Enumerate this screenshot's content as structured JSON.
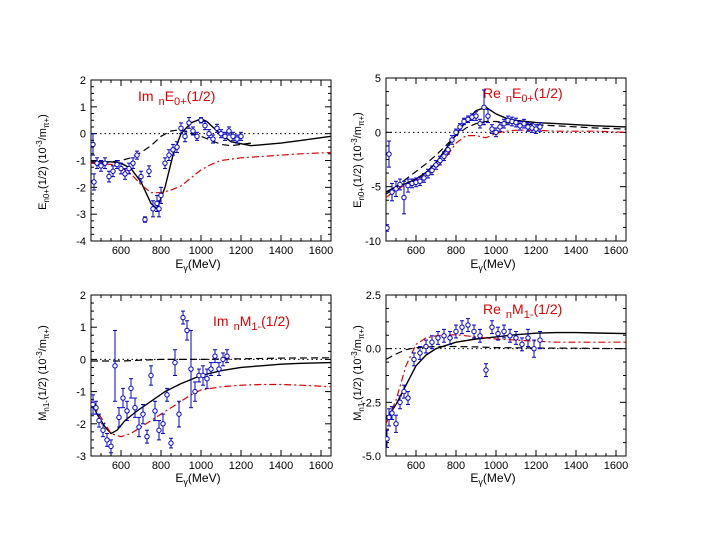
{
  "colors": {
    "axis": "#000000",
    "model": "#000000",
    "alt": "#000000",
    "red": "#dd0000",
    "points": "#0000cc",
    "reference": "#000000"
  },
  "chart_data": [
    {
      "type": "scatter",
      "title": "Im nE0+(1/2)",
      "xlabel": "Eγ(MeV)",
      "ylabel": "En0+(1/2) (10^-3/mπ+)",
      "xlim": [
        450,
        1650
      ],
      "ylim": [
        -4,
        2
      ],
      "xticks": [
        "600",
        "800",
        "1000",
        "1200",
        "1400",
        "1600"
      ],
      "yticks": [
        "-4",
        "-3",
        "-2",
        "-1",
        "0",
        "1",
        "2"
      ],
      "series": [
        {
          "style": "solid",
          "x": [
            450,
            500,
            550,
            600,
            650,
            700,
            750,
            780,
            820,
            860,
            900,
            950,
            1000,
            1030,
            1080,
            1150,
            1250,
            1400,
            1500,
            1650
          ],
          "y": [
            -1.05,
            -1.05,
            -1.05,
            -1.1,
            -1.3,
            -1.8,
            -2.6,
            -2.8,
            -2.0,
            -0.8,
            0.0,
            0.4,
            0.55,
            0.45,
            0.1,
            -0.3,
            -0.45,
            -0.35,
            -0.25,
            -0.1
          ]
        },
        {
          "style": "dashed",
          "x": [
            450,
            500,
            550,
            600,
            650,
            700,
            750,
            800,
            850,
            900,
            950,
            1000,
            1050,
            1100,
            1150,
            1200,
            1250
          ],
          "y": [
            -1.1,
            -1.1,
            -1.05,
            -1.0,
            -0.9,
            -0.7,
            -0.45,
            -0.1,
            0.1,
            0.15,
            0.0,
            -0.1,
            -0.25,
            -0.4,
            -0.45,
            -0.4,
            -0.35
          ]
        },
        {
          "style": "dashdot",
          "x": [
            450,
            500,
            550,
            600,
            650,
            700,
            750,
            800,
            850,
            900,
            950,
            1000,
            1050,
            1100,
            1200,
            1300,
            1400,
            1500,
            1650
          ],
          "y": [
            -1.1,
            -1.1,
            -1.15,
            -1.25,
            -1.5,
            -1.9,
            -2.2,
            -2.2,
            -2.1,
            -1.95,
            -1.65,
            -1.35,
            -1.15,
            -1.0,
            -0.9,
            -0.85,
            -0.8,
            -0.75,
            -0.7
          ]
        }
      ],
      "points": {
        "x": [
          460,
          465,
          480,
          500,
          520,
          540,
          560,
          580,
          600,
          620,
          640,
          660,
          680,
          700,
          720,
          740,
          760,
          780,
          790,
          800,
          820,
          840,
          860,
          880,
          900,
          920,
          940,
          960,
          980,
          1000,
          1020,
          1040,
          1060,
          1080,
          1100,
          1120,
          1140,
          1160,
          1180,
          1200
        ],
        "y": [
          -0.4,
          -1.8,
          -1.1,
          -1.2,
          -1.1,
          -1.6,
          -1.4,
          -1.15,
          -1.3,
          -1.5,
          -1.3,
          -1.1,
          -0.8,
          -1.6,
          -3.2,
          -1.4,
          -2.8,
          -2.6,
          -2.8,
          -2.3,
          -1.1,
          -0.8,
          -0.6,
          -0.5,
          0.2,
          -0.1,
          0.4,
          0.1,
          -0.1,
          0.5,
          0.3,
          0.0,
          -0.2,
          0.2,
          0.0,
          -0.1,
          0.1,
          -0.1,
          -0.2,
          -0.1
        ],
        "err": [
          0.4,
          0.3,
          0.2,
          0.2,
          0.2,
          0.2,
          0.2,
          0.15,
          0.2,
          0.2,
          0.2,
          0.2,
          0.15,
          0.2,
          0.1,
          0.2,
          0.3,
          0.3,
          0.3,
          0.3,
          0.2,
          0.2,
          0.2,
          0.2,
          0.2,
          0.2,
          0.2,
          0.15,
          0.15,
          0.1,
          0.15,
          0.15,
          0.15,
          0.15,
          0.15,
          0.15,
          0.15,
          0.15,
          0.15,
          0.15
        ]
      }
    },
    {
      "type": "scatter",
      "title": "Re nE0+(1/2)",
      "xlabel": "Eγ(MeV)",
      "ylabel": "En0+(1/2) (10^-3/mπ+)",
      "xlim": [
        450,
        1650
      ],
      "ylim": [
        -10,
        5
      ],
      "xticks": [
        "600",
        "800",
        "1000",
        "1200",
        "1400",
        "1600"
      ],
      "yticks": [
        "-10",
        "-5",
        "0",
        "5"
      ],
      "series": [
        {
          "style": "solid",
          "x": [
            450,
            500,
            550,
            600,
            650,
            700,
            750,
            800,
            850,
            900,
            950,
            1000,
            1050,
            1100,
            1150,
            1200,
            1300,
            1400,
            1500,
            1650
          ],
          "y": [
            -5.5,
            -5.0,
            -4.7,
            -4.3,
            -3.7,
            -2.8,
            -1.5,
            -0.2,
            1.0,
            2.0,
            2.3,
            1.7,
            1.3,
            1.1,
            1.0,
            0.9,
            0.8,
            0.7,
            0.6,
            0.5
          ]
        },
        {
          "style": "dashed",
          "x": [
            450,
            500,
            550,
            600,
            650,
            700,
            750,
            800,
            850,
            900,
            950,
            1000,
            1050,
            1100,
            1200,
            1300,
            1400,
            1500,
            1650
          ],
          "y": [
            -5.7,
            -5.0,
            -4.3,
            -3.6,
            -2.9,
            -2.1,
            -1.2,
            -0.3,
            0.4,
            0.8,
            1.0,
            1.0,
            0.9,
            0.8,
            0.7,
            0.6,
            0.5,
            0.4,
            0.3
          ]
        },
        {
          "style": "dashdot",
          "x": [
            450,
            500,
            550,
            600,
            650,
            700,
            750,
            800,
            850,
            900,
            950,
            1000,
            1050,
            1100,
            1200,
            1300,
            1400,
            1500,
            1650
          ],
          "y": [
            -6.0,
            -5.3,
            -4.8,
            -4.4,
            -4.0,
            -3.3,
            -2.3,
            -1.0,
            -0.3,
            -0.3,
            -0.5,
            -0.1,
            0.1,
            0.2,
            0.2,
            0.1,
            0.1,
            0.1,
            0.0
          ]
        }
      ],
      "points": {
        "x": [
          455,
          465,
          480,
          500,
          520,
          540,
          560,
          580,
          600,
          620,
          640,
          660,
          680,
          700,
          720,
          740,
          760,
          780,
          800,
          820,
          840,
          860,
          880,
          900,
          920,
          940,
          960,
          980,
          1000,
          1020,
          1040,
          1060,
          1080,
          1100,
          1120,
          1140,
          1160,
          1180,
          1200,
          1220
        ],
        "y": [
          -8.8,
          -2.0,
          -5.5,
          -5.2,
          -4.8,
          -6.0,
          -4.9,
          -4.7,
          -4.6,
          -4.5,
          -4.2,
          -3.8,
          -3.5,
          -3.0,
          -2.6,
          -2.2,
          -1.6,
          -0.7,
          0.0,
          0.5,
          1.0,
          1.2,
          1.4,
          1.5,
          0.8,
          2.3,
          1.5,
          0.3,
          0.0,
          0.5,
          0.8,
          1.1,
          1.0,
          0.9,
          0.6,
          0.8,
          0.5,
          0.4,
          0.3,
          0.5
        ],
        "err": [
          0.3,
          1.2,
          0.8,
          0.7,
          0.5,
          1.5,
          0.6,
          0.4,
          0.4,
          0.4,
          0.4,
          0.4,
          0.4,
          0.4,
          0.4,
          0.4,
          0.4,
          0.4,
          0.3,
          0.3,
          0.3,
          0.3,
          0.3,
          0.4,
          0.4,
          1.6,
          0.6,
          0.4,
          0.4,
          0.4,
          0.4,
          0.4,
          0.4,
          0.4,
          0.4,
          0.4,
          0.4,
          0.4,
          0.4,
          0.4
        ]
      }
    },
    {
      "type": "scatter",
      "title": "Im nM1-(1/2)",
      "xlabel": "Eγ(MeV)",
      "ylabel": "Mn1-(1/2) (10^-3/mπ+)",
      "xlim": [
        450,
        1650
      ],
      "ylim": [
        -3,
        2
      ],
      "xticks": [
        "600",
        "800",
        "1000",
        "1200",
        "1400",
        "1600"
      ],
      "yticks": [
        "-3",
        "-2",
        "-1",
        "0",
        "1",
        "2"
      ],
      "series": [
        {
          "style": "solid",
          "x": [
            450,
            480,
            520,
            550,
            580,
            620,
            680,
            750,
            820,
            900,
            1000,
            1100,
            1200,
            1300,
            1400,
            1500,
            1650
          ],
          "y": [
            -1.3,
            -1.7,
            -2.1,
            -2.3,
            -2.2,
            -1.9,
            -1.6,
            -1.3,
            -1.0,
            -0.75,
            -0.5,
            -0.35,
            -0.25,
            -0.2,
            -0.15,
            -0.12,
            -0.1
          ]
        },
        {
          "style": "dashed",
          "x": [
            450,
            600,
            800,
            1000,
            1200,
            1400,
            1650
          ],
          "y": [
            -0.05,
            -0.05,
            0.0,
            0.0,
            0.02,
            0.04,
            0.05
          ]
        },
        {
          "style": "dashdot",
          "x": [
            450,
            500,
            550,
            600,
            650,
            700,
            750,
            800,
            850,
            900,
            950,
            1000,
            1100,
            1200,
            1300,
            1400,
            1500,
            1650
          ],
          "y": [
            -1.3,
            -1.8,
            -2.3,
            -2.4,
            -2.3,
            -2.1,
            -1.9,
            -1.7,
            -1.5,
            -1.3,
            -1.1,
            -0.95,
            -0.85,
            -0.8,
            -0.78,
            -0.78,
            -0.8,
            -0.85
          ]
        }
      ],
      "points": {
        "x": [
          460,
          475,
          490,
          510,
          530,
          550,
          570,
          590,
          610,
          630,
          650,
          670,
          690,
          710,
          730,
          750,
          770,
          790,
          810,
          830,
          850,
          870,
          890,
          910,
          930,
          950,
          970,
          990,
          1010,
          1030,
          1050,
          1070,
          1090,
          1110,
          1130
        ],
        "y": [
          -1.4,
          -1.5,
          -1.9,
          -2.2,
          -2.5,
          -2.7,
          -0.2,
          -1.8,
          -1.2,
          -1.6,
          -0.9,
          -1.5,
          -2.1,
          -1.7,
          -2.4,
          -0.5,
          -1.6,
          -2.2,
          -2.0,
          -1.1,
          -2.6,
          -0.1,
          -1.7,
          1.3,
          0.9,
          -0.3,
          -1.0,
          -0.5,
          -0.5,
          -0.6,
          -0.3,
          0.1,
          -0.3,
          0.0,
          0.1
        ],
        "err": [
          0.3,
          0.2,
          0.2,
          0.2,
          0.2,
          0.2,
          1.1,
          0.3,
          0.3,
          0.3,
          0.3,
          0.3,
          0.3,
          0.3,
          0.2,
          0.3,
          0.3,
          0.3,
          0.3,
          0.2,
          0.15,
          0.4,
          0.4,
          0.2,
          0.3,
          1.2,
          0.3,
          0.2,
          0.3,
          0.3,
          0.2,
          0.2,
          0.2,
          0.2,
          0.2
        ]
      }
    },
    {
      "type": "scatter",
      "title": "Re nM1-(1/2)",
      "xlabel": "Eγ(MeV)",
      "ylabel": "Mn1-(1/2) (10^-3/mπ+)",
      "xlim": [
        450,
        1650
      ],
      "ylim": [
        -5,
        2.5
      ],
      "xticks": [
        "600",
        "800",
        "1000",
        "1200",
        "1400",
        "1600"
      ],
      "yticks": [
        "-5.0",
        "-2.5",
        "0.0",
        "2.5"
      ],
      "series": [
        {
          "style": "solid",
          "x": [
            450,
            500,
            550,
            600,
            650,
            700,
            800,
            900,
            1000,
            1100,
            1200,
            1300,
            1400,
            1500,
            1650
          ],
          "y": [
            -3.3,
            -2.6,
            -1.7,
            -0.8,
            -0.3,
            0.0,
            0.3,
            0.45,
            0.55,
            0.65,
            0.72,
            0.75,
            0.75,
            0.73,
            0.7
          ]
        },
        {
          "style": "dashed",
          "x": [
            450,
            500,
            550,
            600,
            700,
            800,
            900,
            1000,
            1200,
            1400,
            1650
          ],
          "y": [
            -0.5,
            -0.25,
            -0.05,
            0.05,
            0.1,
            0.1,
            0.08,
            0.05,
            0.03,
            0.02,
            0.0
          ]
        },
        {
          "style": "dashdot",
          "x": [
            450,
            500,
            550,
            600,
            650,
            700,
            800,
            900,
            1000,
            1100,
            1200,
            1300,
            1400,
            1500,
            1650
          ],
          "y": [
            -3.5,
            -2.4,
            -0.8,
            0.2,
            0.5,
            0.6,
            0.65,
            0.55,
            0.45,
            0.4,
            0.35,
            0.3,
            0.3,
            0.3,
            0.3
          ]
        }
      ],
      "points": {
        "x": [
          455,
          465,
          480,
          500,
          520,
          540,
          560,
          590,
          620,
          650,
          680,
          710,
          740,
          770,
          800,
          830,
          860,
          890,
          920,
          950,
          980,
          1010,
          1040,
          1070,
          1100,
          1130,
          1160,
          1190,
          1220
        ],
        "y": [
          -4.2,
          -3.2,
          -3.0,
          -3.5,
          -2.5,
          -2.0,
          -2.3,
          -0.5,
          -0.2,
          0.1,
          0.3,
          0.5,
          0.6,
          0.5,
          0.8,
          1.0,
          1.1,
          0.8,
          0.6,
          -1.0,
          1.0,
          0.7,
          0.8,
          0.6,
          0.5,
          0.2,
          0.5,
          0.0,
          0.4
        ],
        "err": [
          0.4,
          0.4,
          0.3,
          0.4,
          0.3,
          0.3,
          0.3,
          0.3,
          0.3,
          0.3,
          0.3,
          0.3,
          0.3,
          0.3,
          0.3,
          0.3,
          0.3,
          0.3,
          0.3,
          0.3,
          0.3,
          0.3,
          0.3,
          0.3,
          0.3,
          0.3,
          0.4,
          0.4,
          0.4
        ]
      }
    }
  ]
}
